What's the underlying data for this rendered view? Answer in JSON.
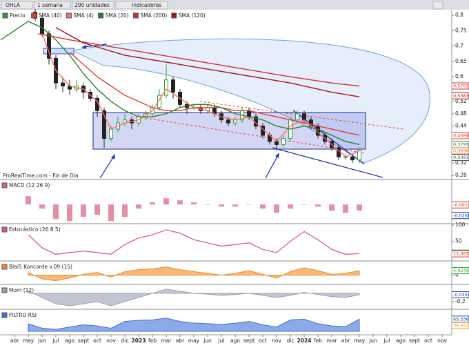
{
  "toolbar": {
    "symbol": "OHLA",
    "period": "1 semana",
    "units": "200 unidades",
    "indicators": "Indicadores"
  },
  "x_axis": {
    "xlim": [
      -1.05,
      31.7
    ],
    "xticks": [
      {
        "value": 0,
        "label": "abr"
      },
      {
        "value": 1,
        "label": "may"
      },
      {
        "value": 2,
        "label": "jun"
      },
      {
        "value": 3,
        "label": "jul"
      },
      {
        "value": 4,
        "label": "ago"
      },
      {
        "value": 5,
        "label": "sept"
      },
      {
        "value": 6,
        "label": "oct"
      },
      {
        "value": 7,
        "label": "nov"
      },
      {
        "value": 8,
        "label": "dic"
      },
      {
        "value": 9,
        "label": "2023"
      },
      {
        "value": 10,
        "label": "feb"
      },
      {
        "value": 11,
        "label": "mar"
      },
      {
        "value": 12,
        "label": "abr"
      },
      {
        "value": 13,
        "label": "may"
      },
      {
        "value": 14,
        "label": "jun"
      },
      {
        "value": 15,
        "label": "jul"
      },
      {
        "value": 16,
        "label": "ago"
      },
      {
        "value": 17,
        "label": "sept"
      },
      {
        "value": 18,
        "label": "oct"
      },
      {
        "value": 19,
        "label": "nov"
      },
      {
        "value": 20,
        "label": "dic"
      },
      {
        "value": 21,
        "label": "2024"
      },
      {
        "value": 22,
        "label": "feb"
      },
      {
        "value": 23,
        "label": "mar"
      },
      {
        "value": 24,
        "label": "abr"
      },
      {
        "value": 25,
        "label": "may"
      },
      {
        "value": 26,
        "label": "jun"
      },
      {
        "value": 27,
        "label": "jul"
      },
      {
        "value": 28,
        "label": "ago"
      },
      {
        "value": 29,
        "label": "sept"
      },
      {
        "value": 30,
        "label": "oct"
      },
      {
        "value": 31,
        "label": "nov"
      }
    ]
  },
  "chart_data": [
    {
      "type": "candlestick",
      "name": "Precio",
      "note": "ProRealTime.com - Fin de Día",
      "up_color": "#2e9e3a",
      "down_color": "#222222",
      "x": [
        1.5,
        2,
        2.5,
        3,
        3.5,
        4,
        4.5,
        5,
        5.5,
        6,
        6.5,
        7,
        7.5,
        8,
        8.5,
        9,
        9.5,
        10,
        10.5,
        11,
        11.5,
        12,
        12.5,
        13,
        13.5,
        14,
        14.5,
        15,
        15.5,
        16,
        16.5,
        17,
        17.5,
        18,
        18.5,
        19,
        19.5,
        20,
        20.5,
        21,
        21.5,
        22,
        22.5,
        23,
        23.5,
        24,
        24.5,
        25
      ],
      "open": [
        0.81,
        0.79,
        0.74,
        0.66,
        0.58,
        0.57,
        0.56,
        0.57,
        0.55,
        0.53,
        0.49,
        0.4,
        0.43,
        0.45,
        0.46,
        0.45,
        0.47,
        0.48,
        0.5,
        0.54,
        0.59,
        0.55,
        0.51,
        0.5,
        0.5,
        0.49,
        0.5,
        0.48,
        0.46,
        0.45,
        0.46,
        0.49,
        0.47,
        0.44,
        0.41,
        0.39,
        0.38,
        0.4,
        0.46,
        0.48,
        0.46,
        0.44,
        0.41,
        0.39,
        0.37,
        0.34,
        0.34,
        0.33
      ],
      "close": [
        0.79,
        0.74,
        0.66,
        0.58,
        0.57,
        0.56,
        0.57,
        0.55,
        0.53,
        0.49,
        0.4,
        0.43,
        0.45,
        0.46,
        0.45,
        0.47,
        0.48,
        0.5,
        0.54,
        0.59,
        0.55,
        0.51,
        0.5,
        0.5,
        0.49,
        0.5,
        0.48,
        0.46,
        0.45,
        0.46,
        0.49,
        0.47,
        0.44,
        0.41,
        0.39,
        0.38,
        0.4,
        0.46,
        0.48,
        0.46,
        0.44,
        0.41,
        0.39,
        0.37,
        0.34,
        0.34,
        0.33,
        0.36
      ],
      "high": [
        0.82,
        0.8,
        0.75,
        0.67,
        0.6,
        0.59,
        0.59,
        0.58,
        0.56,
        0.54,
        0.5,
        0.44,
        0.47,
        0.48,
        0.47,
        0.48,
        0.49,
        0.51,
        0.56,
        0.64,
        0.6,
        0.56,
        0.52,
        0.51,
        0.51,
        0.51,
        0.51,
        0.49,
        0.47,
        0.47,
        0.5,
        0.5,
        0.48,
        0.45,
        0.42,
        0.4,
        0.41,
        0.47,
        0.49,
        0.49,
        0.47,
        0.45,
        0.42,
        0.4,
        0.38,
        0.35,
        0.35,
        0.37
      ],
      "low": [
        0.78,
        0.73,
        0.64,
        0.56,
        0.55,
        0.54,
        0.55,
        0.53,
        0.52,
        0.47,
        0.37,
        0.39,
        0.42,
        0.44,
        0.43,
        0.44,
        0.46,
        0.47,
        0.49,
        0.53,
        0.53,
        0.5,
        0.48,
        0.49,
        0.48,
        0.48,
        0.47,
        0.45,
        0.44,
        0.44,
        0.45,
        0.46,
        0.43,
        0.4,
        0.38,
        0.36,
        0.37,
        0.39,
        0.45,
        0.45,
        0.43,
        0.4,
        0.38,
        0.36,
        0.33,
        0.33,
        0.32,
        0.32
      ],
      "series": [
        {
          "name": "SMA (40)",
          "color": "#e53935",
          "x": [
            4,
            5,
            6,
            7,
            8,
            9,
            10,
            11,
            12,
            13,
            14,
            15,
            16,
            17,
            18,
            19,
            20,
            21,
            22,
            23,
            24,
            25
          ],
          "values": [
            0.68,
            0.64,
            0.6,
            0.57,
            0.54,
            0.52,
            0.5,
            0.49,
            0.49,
            0.5,
            0.5,
            0.5,
            0.49,
            0.49,
            0.48,
            0.47,
            0.46,
            0.45,
            0.44,
            0.43,
            0.42,
            0.41
          ]
        },
        {
          "name": "SMA (4)",
          "color": "#ff6f61",
          "x": [
            2,
            3,
            4,
            5,
            6,
            7,
            8,
            9,
            10,
            11,
            12,
            13,
            14,
            15,
            16,
            17,
            18,
            19,
            20,
            21,
            22,
            23,
            24,
            25
          ],
          "values": [
            0.74,
            0.62,
            0.57,
            0.56,
            0.52,
            0.43,
            0.45,
            0.46,
            0.49,
            0.56,
            0.53,
            0.5,
            0.49,
            0.47,
            0.46,
            0.47,
            0.43,
            0.39,
            0.44,
            0.46,
            0.42,
            0.38,
            0.34,
            0.36
          ]
        },
        {
          "name": "SMA (20)",
          "color": "#2e7d32",
          "x": [
            -1,
            0,
            1,
            2,
            3,
            4,
            5,
            6,
            7,
            8,
            9,
            10,
            11,
            12,
            13,
            14,
            15,
            16,
            17,
            18,
            19,
            20,
            21,
            22,
            23,
            24,
            25
          ],
          "values": [
            0.72,
            0.75,
            0.78,
            0.76,
            0.72,
            0.67,
            0.61,
            0.56,
            0.52,
            0.49,
            0.47,
            0.47,
            0.48,
            0.5,
            0.51,
            0.51,
            0.5,
            0.48,
            0.47,
            0.46,
            0.44,
            0.43,
            0.44,
            0.43,
            0.41,
            0.39,
            0.38
          ]
        },
        {
          "name": "SMA (200)",
          "color": "#d32f2f",
          "x": [
            1.7,
            4,
            8,
            12,
            16,
            20,
            23,
            25
          ],
          "values": [
            0.74,
            0.72,
            0.69,
            0.66,
            0.63,
            0.6,
            0.58,
            0.57
          ]
        },
        {
          "name": "SMA (120)",
          "color": "#a31515",
          "x": [
            3,
            5,
            8,
            12,
            16,
            20,
            23,
            25
          ],
          "values": [
            0.76,
            0.71,
            0.67,
            0.64,
            0.61,
            0.58,
            0.55,
            0.535
          ]
        }
      ],
      "ylim": [
        0.262,
        0.818
      ],
      "yticks": [
        {
          "value": 0.8,
          "label": "0,8"
        },
        {
          "value": 0.75,
          "label": "0,75"
        },
        {
          "value": 0.7,
          "label": "0,7"
        },
        {
          "value": 0.65,
          "label": "0,65"
        },
        {
          "value": 0.6,
          "label": "0,6"
        },
        {
          "value": 0.52,
          "label": "0,52"
        },
        {
          "value": 0.48,
          "label": "0,48"
        },
        {
          "value": 0.44,
          "label": "0,44"
        },
        {
          "value": 0.32,
          "label": "0,32"
        },
        {
          "value": 0.28,
          "label": "0,28"
        }
      ],
      "value_boxes": [
        {
          "value": 0.5703,
          "label": "0,5703",
          "color": "#d32f2f"
        },
        {
          "value": 0.5383,
          "label": "0,5383",
          "color": "#a31515"
        },
        {
          "value": 0.4088,
          "label": "0,4088",
          "color": "#e53935"
        },
        {
          "value": 0.3795,
          "label": "0,3795",
          "color": "#2e7d32"
        },
        {
          "value": 0.3596,
          "label": "0,3596",
          "color": "#e0702a"
        },
        {
          "value": 0.3381,
          "label": "0,3381",
          "color": "#555555"
        }
      ]
    },
    {
      "type": "bar",
      "title": "MACD (12 26 9)",
      "color": "#d9607a",
      "x": [
        1,
        2,
        3,
        4,
        5,
        6,
        7,
        8,
        9,
        10,
        11,
        12,
        13,
        14,
        15,
        16,
        17,
        18,
        19,
        20,
        21,
        22,
        23,
        24,
        25
      ],
      "values": [
        0.02,
        -0.01,
        -0.035,
        -0.04,
        -0.03,
        -0.025,
        -0.04,
        -0.03,
        -0.01,
        0.005,
        0.015,
        0.01,
        0.005,
        0,
        -0.005,
        -0.005,
        0,
        -0.01,
        -0.02,
        -0.01,
        0,
        -0.005,
        -0.015,
        -0.02,
        -0.015
      ],
      "ylim": [
        -0.043,
        0.057
      ],
      "value_boxes": [
        {
          "value": -0.001,
          "label": "-0,001",
          "color": "#d32f2f"
        },
        {
          "value": -0.0268,
          "label": "-0,0268",
          "color": "#1e3a9e"
        }
      ]
    },
    {
      "type": "line",
      "title": "Estocástico (26 8 5)",
      "color": "#d9607a",
      "x": [
        1,
        2,
        3,
        4,
        5,
        6,
        7,
        8,
        9,
        10,
        11,
        12,
        13,
        14,
        15,
        16,
        17,
        18,
        19,
        20,
        21,
        22,
        23,
        24,
        25
      ],
      "values": [
        70,
        30,
        10,
        15,
        20,
        15,
        10,
        40,
        60,
        70,
        85,
        75,
        55,
        45,
        35,
        40,
        45,
        25,
        15,
        50,
        80,
        55,
        25,
        10,
        12
      ],
      "ylim": [
        0,
        100
      ],
      "yticks": [
        50,
        100
      ],
      "value_boxes": [
        {
          "value": 13.483,
          "label": "13,483",
          "color": "#2e9e3a"
        },
        {
          "value": 11.365,
          "label": "11,365",
          "color": "#d32f2f"
        }
      ]
    },
    {
      "type": "area",
      "title": "Blai5 Koncorde v.09 (15)",
      "color": "#f08a24",
      "x": [
        1,
        2,
        3,
        4,
        5,
        6,
        7,
        8,
        9,
        10,
        11,
        12,
        13,
        14,
        15,
        16,
        17,
        18,
        19,
        20,
        21,
        22,
        23,
        24,
        25
      ],
      "values": [
        3,
        -4,
        -6,
        -3,
        1,
        3,
        -2,
        4,
        6,
        7,
        9,
        6,
        4,
        2,
        0,
        2,
        5,
        1,
        -3,
        4,
        8,
        5,
        1,
        2,
        4.9245
      ],
      "ylim": [
        -10,
        14
      ],
      "yticks": [
        0
      ],
      "value_boxes": [
        {
          "value": 4.9245,
          "label": "4,9245",
          "color": "#2e9e3a"
        }
      ]
    },
    {
      "type": "area",
      "title": "Mom (12)",
      "color": "#9aa0b0",
      "x": [
        1,
        2,
        3,
        4,
        5,
        6,
        7,
        8,
        9,
        10,
        11,
        12,
        13,
        14,
        15,
        16,
        17,
        18,
        19,
        20,
        21,
        22,
        23,
        24,
        25
      ],
      "values": [
        0.05,
        -0.1,
        -0.25,
        -0.3,
        -0.25,
        -0.2,
        -0.3,
        -0.2,
        -0.1,
        0,
        0.1,
        0.05,
        0,
        -0.02,
        -0.05,
        -0.03,
        0,
        -0.05,
        -0.1,
        -0.05,
        0.02,
        -0.03,
        -0.08,
        -0.1,
        -0.0354
      ],
      "ylim": [
        -0.35,
        0.18
      ],
      "yticks": [
        {
          "value": -0.2,
          "label": "-0,2"
        }
      ],
      "value_boxes": [
        {
          "value": -0.0354,
          "label": "-0,0354",
          "color": "#1e3a9e"
        }
      ]
    },
    {
      "type": "area",
      "title": "FILTRO RSI",
      "color": "#3f6fd8",
      "x": [
        1,
        2,
        3,
        4,
        5,
        6,
        7,
        8,
        9,
        10,
        11,
        12,
        13,
        14,
        15,
        16,
        17,
        18,
        19,
        20,
        21,
        22,
        23,
        24,
        25
      ],
      "values": [
        45,
        25,
        20,
        30,
        40,
        35,
        25,
        55,
        60,
        62,
        70,
        55,
        48,
        45,
        42,
        47,
        55,
        40,
        30,
        62,
        65,
        45,
        35,
        32,
        65.336
      ],
      "ylim": [
        11,
        103
      ],
      "value_boxes": [
        {
          "value": 65.336,
          "label": "65,336",
          "color": "#1e3a9e"
        },
        {
          "value": 36.651,
          "label": "36,651",
          "color": "#e0a020"
        }
      ]
    }
  ]
}
